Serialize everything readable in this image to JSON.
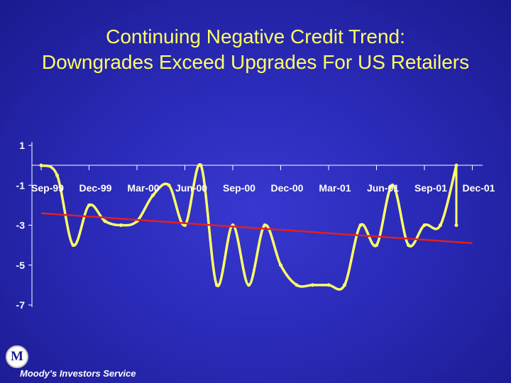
{
  "title": {
    "line1": "Continuing Negative Credit Trend:",
    "line2": "Downgrades Exceed Upgrades For US Retailers"
  },
  "brand": {
    "name": "Moody's Investors Service",
    "logo_letter": "M"
  },
  "colors": {
    "title": "#ffff66",
    "series": "#ffff66",
    "trend": "#e02020",
    "axis": "#ffffff",
    "background": "#2a2ab8"
  },
  "chart_data": {
    "type": "line",
    "title": "Continuing Negative Credit Trend: Downgrades Exceed Upgrades For US Retailers",
    "xlabel": "",
    "ylabel": "",
    "ylim": [
      -7,
      1
    ],
    "yticks": [
      1,
      -1,
      -3,
      -5,
      -7
    ],
    "xlim": [
      0,
      27
    ],
    "xticks": [
      {
        "x": 0,
        "label": "Sep-99"
      },
      {
        "x": 3,
        "label": "Dec-99"
      },
      {
        "x": 6,
        "label": "Mar-00"
      },
      {
        "x": 9,
        "label": "Jun-00"
      },
      {
        "x": 12,
        "label": "Sep-00"
      },
      {
        "x": 15,
        "label": "Dec-00"
      },
      {
        "x": 18,
        "label": "Mar-01"
      },
      {
        "x": 21,
        "label": "Jun-01"
      },
      {
        "x": 24,
        "label": "Sep-01"
      },
      {
        "x": 27,
        "label": "Dec-01"
      }
    ],
    "grid": false,
    "legend": "none",
    "series": [
      {
        "points": [
          [
            0,
            0
          ],
          [
            1,
            -0.5
          ],
          [
            2,
            -4
          ],
          [
            3,
            -2
          ],
          [
            4,
            -2.8
          ],
          [
            5,
            -3
          ],
          [
            6,
            -2.8
          ],
          [
            7,
            -1.5
          ],
          [
            8,
            -1
          ],
          [
            9,
            -3
          ],
          [
            10,
            0
          ],
          [
            11,
            -6
          ],
          [
            12,
            -3
          ],
          [
            13,
            -6
          ],
          [
            14,
            -3
          ],
          [
            15,
            -5
          ],
          [
            16,
            -6
          ],
          [
            17,
            -6
          ],
          [
            18,
            -6
          ],
          [
            19,
            -6
          ],
          [
            20,
            -3
          ],
          [
            21,
            -4
          ],
          [
            22,
            -1
          ],
          [
            23,
            -4
          ],
          [
            24,
            -3
          ],
          [
            25,
            -3
          ],
          [
            26,
            0
          ],
          [
            26,
            -3
          ]
        ]
      },
      {
        "type": "trend",
        "points": [
          [
            0,
            -2.4
          ],
          [
            27,
            -3.9
          ]
        ]
      }
    ]
  }
}
